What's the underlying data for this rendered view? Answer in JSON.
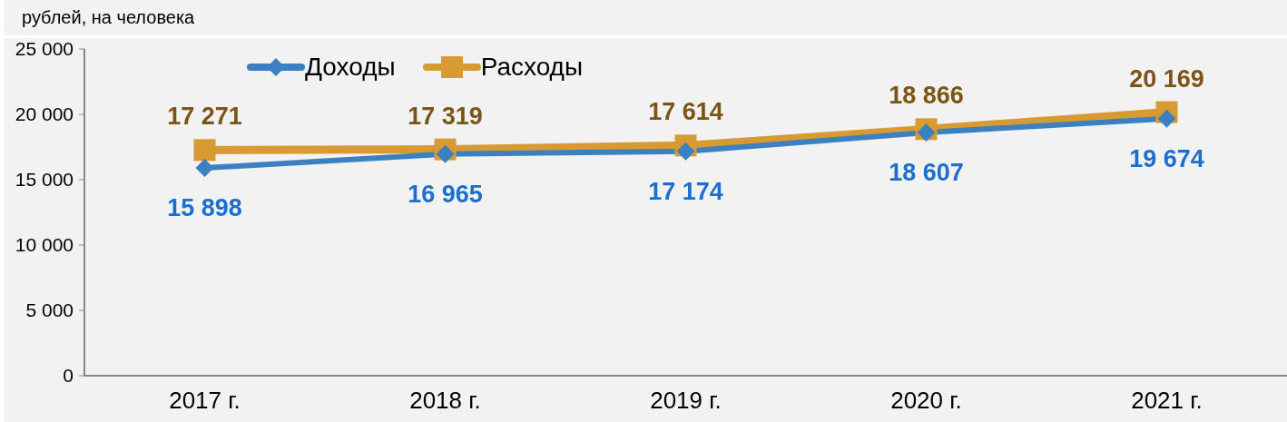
{
  "chart_data": {
    "type": "line",
    "ylabel": "рублей, на человека",
    "categories": [
      "2017 г.",
      "2018 г.",
      "2019 г.",
      "2020 г.",
      "2021 г."
    ],
    "series": [
      {
        "name": "Доходы",
        "color": "#3b80c0",
        "marker": "diamond",
        "values": [
          15898,
          16965,
          17174,
          18607,
          19674
        ],
        "value_labels": [
          "15 898",
          "16 965",
          "17 174",
          "18 607",
          "19 674"
        ]
      },
      {
        "name": "Расходы",
        "color": "#d89b34",
        "marker": "square",
        "values": [
          17271,
          17319,
          17614,
          18866,
          20169
        ],
        "value_labels": [
          "17 271",
          "17 319",
          "17 614",
          "18 866",
          "20 169"
        ]
      }
    ],
    "ylim": [
      0,
      25000
    ],
    "yticks": [
      0,
      {
        "value": 5000,
        "label": "5 000"
      },
      {
        "value": 10000,
        "label": "10 000"
      },
      {
        "value": 15000,
        "label": "15 000"
      },
      {
        "value": 20000,
        "label": "20 000"
      },
      {
        "value": 25000,
        "label": "25 000"
      }
    ],
    "legend": "top left",
    "line_style": "solid"
  }
}
